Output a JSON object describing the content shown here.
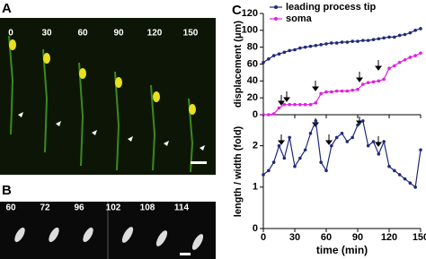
{
  "panels": {
    "A": {
      "label": "A",
      "times": [
        "0",
        "30",
        "60",
        "90",
        "120",
        "150"
      ]
    },
    "B": {
      "label": "B",
      "times": [
        "60",
        "72",
        "96",
        "102",
        "108",
        "114"
      ]
    },
    "C": {
      "label": "C"
    }
  },
  "chart_data": [
    {
      "type": "line",
      "ylabel": "displacement (μm)",
      "x": [
        0,
        5,
        10,
        15,
        20,
        25,
        30,
        35,
        40,
        45,
        50,
        55,
        60,
        65,
        70,
        75,
        80,
        85,
        90,
        95,
        100,
        105,
        110,
        115,
        120,
        125,
        130,
        135,
        140,
        145,
        150
      ],
      "series": [
        {
          "name": "leading process tip",
          "color": "#1f2a7a",
          "values": [
            62,
            66,
            70,
            72,
            74,
            76,
            77,
            79,
            80,
            81,
            82,
            83,
            84,
            85,
            85,
            86,
            86,
            87,
            87,
            88,
            88,
            89,
            90,
            91,
            92,
            92,
            94,
            95,
            97,
            100,
            102
          ]
        },
        {
          "name": "soma",
          "color": "#e020e0",
          "values": [
            0,
            0,
            1,
            8,
            12,
            12,
            12,
            12,
            12,
            12,
            14,
            25,
            27,
            27,
            28,
            28,
            28,
            29,
            30,
            36,
            38,
            39,
            40,
            42,
            55,
            58,
            62,
            65,
            68,
            70,
            73
          ]
        }
      ],
      "xlim": [
        0,
        150
      ],
      "xticks": [
        0,
        30,
        60,
        90,
        120,
        150
      ],
      "ylim": [
        0,
        120
      ],
      "yticks": [
        0,
        20,
        40,
        60,
        80,
        100,
        120
      ]
    },
    {
      "type": "line",
      "ylabel": "length / width (fold)",
      "xlabel": "time (min)",
      "x": [
        0,
        5,
        10,
        15,
        20,
        25,
        30,
        35,
        40,
        45,
        50,
        55,
        60,
        65,
        70,
        75,
        80,
        85,
        90,
        95,
        100,
        105,
        110,
        115,
        120,
        125,
        130,
        135,
        140,
        145,
        150
      ],
      "series": [
        {
          "color": "#1f2a7a",
          "values": [
            1.3,
            1.4,
            1.6,
            2.0,
            1.7,
            2.2,
            1.5,
            1.7,
            1.9,
            2.3,
            2.6,
            1.6,
            1.4,
            2.0,
            2.2,
            2.3,
            2.1,
            2.2,
            2.5,
            2.6,
            2.0,
            2.1,
            1.8,
            2.1,
            1.5,
            1.4,
            1.3,
            1.2,
            1.1,
            1.0,
            1.9
          ]
        }
      ],
      "xlim": [
        0,
        150
      ],
      "xticks": [
        0,
        30,
        60,
        90,
        120,
        150
      ],
      "ylim": [
        0,
        2.75
      ],
      "yticks": [
        0,
        1,
        2
      ]
    }
  ]
}
